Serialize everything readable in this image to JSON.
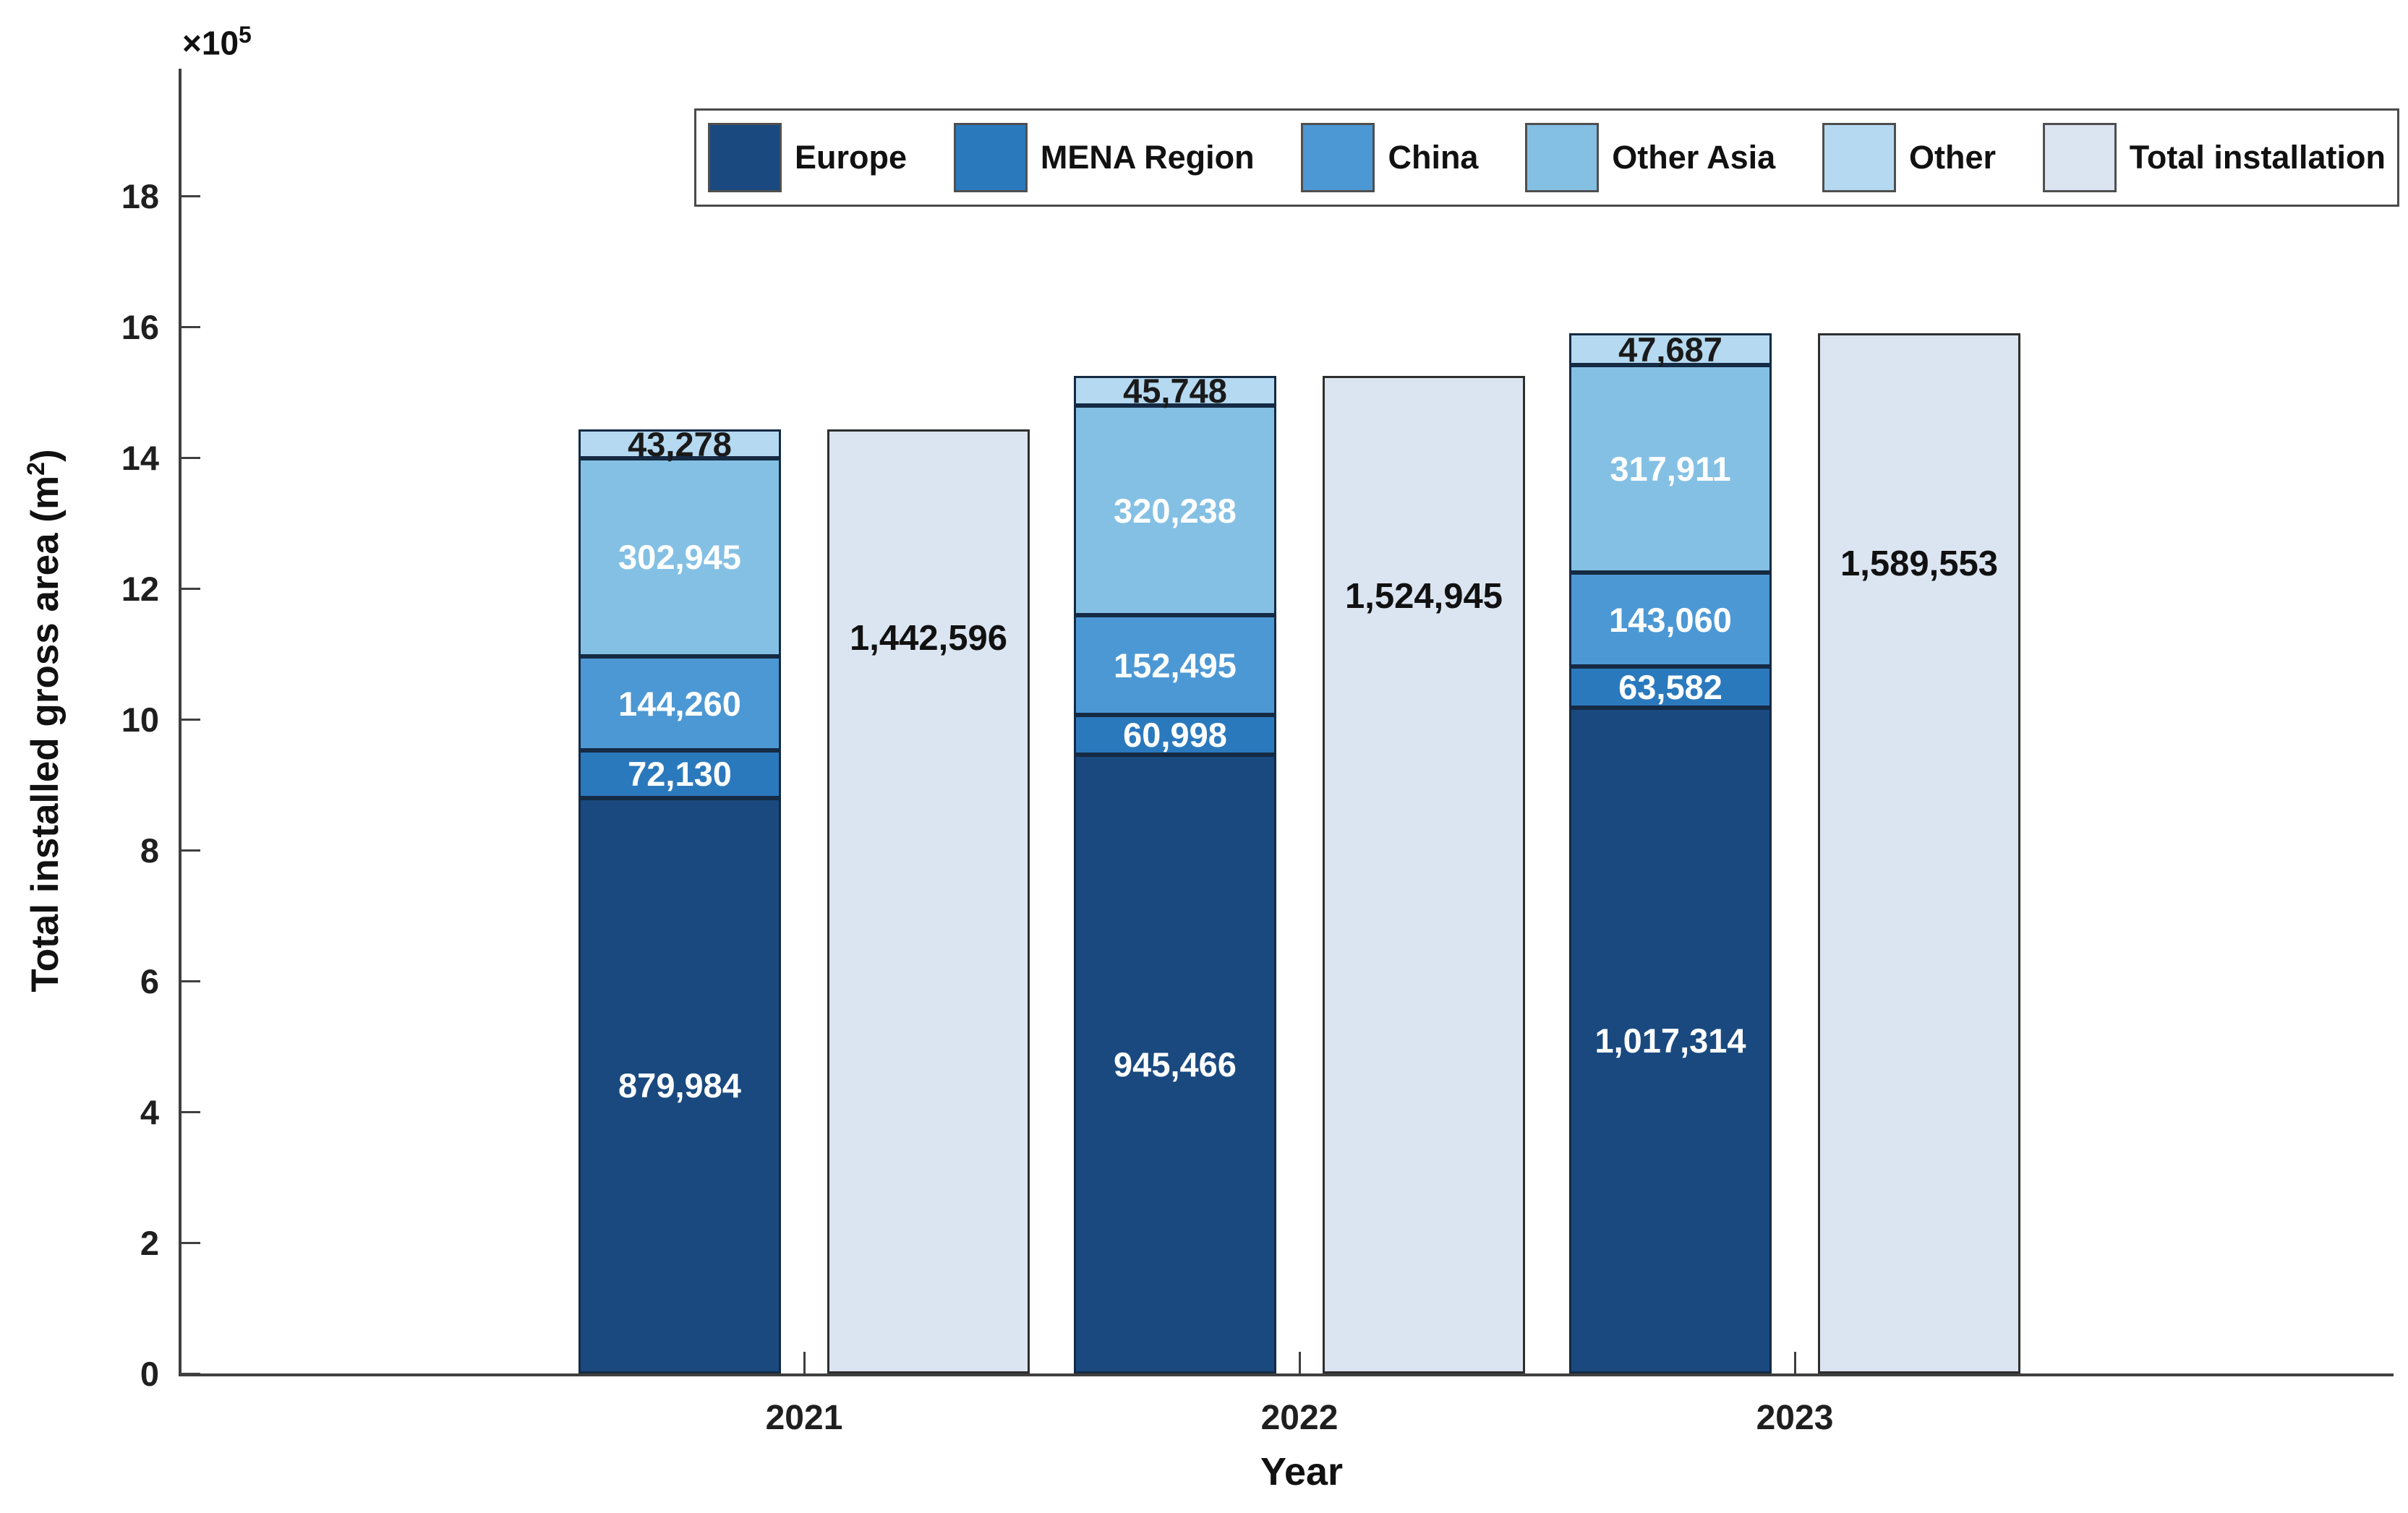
{
  "chart_data": {
    "type": "bar",
    "variant": "grouped-stacked-with-total-bar",
    "title": "",
    "xlabel": "Year",
    "ylabel": "Total installed gross area (m²)",
    "ylabel_parts": {
      "pre": "Total installed gross area (m",
      "sup": "2",
      "post": ")"
    },
    "offset_label": {
      "base": "×10",
      "exp": "5"
    },
    "categories": [
      "2021",
      "2022",
      "2023"
    ],
    "series": [
      {
        "name": "Europe",
        "color": "#19497f",
        "label_color": "#ffffff",
        "values": [
          879984,
          945466,
          1017314
        ]
      },
      {
        "name": "MENA Region",
        "color": "#2b79bd",
        "label_color": "#ffffff",
        "values": [
          72130,
          60998,
          63582
        ]
      },
      {
        "name": "China",
        "color": "#4c98d4",
        "label_color": "#ffffff",
        "values": [
          144260,
          152495,
          143060
        ]
      },
      {
        "name": "Other Asia",
        "color": "#84c0e4",
        "label_color": "#ffffff",
        "values": [
          302945,
          320238,
          317911
        ]
      },
      {
        "name": "Other",
        "color": "#b5d9f1",
        "label_color": "#1a1a1a",
        "values": [
          43278,
          45748,
          47687
        ]
      }
    ],
    "total_series": {
      "name": "Total installation",
      "color": "#dbe5f1",
      "label_color": "#111111",
      "values": [
        1442596,
        1524945,
        1589553
      ]
    },
    "y_ticks": [
      0,
      2,
      4,
      6,
      8,
      10,
      12,
      14,
      16,
      18
    ],
    "y_tick_unit": 100000,
    "ylim": [
      0,
      1995000
    ],
    "grid": false,
    "legend_position": "top",
    "legend_entries": [
      "Europe",
      "MENA Region",
      "China",
      "Other Asia",
      "Other",
      "Total installation"
    ]
  }
}
